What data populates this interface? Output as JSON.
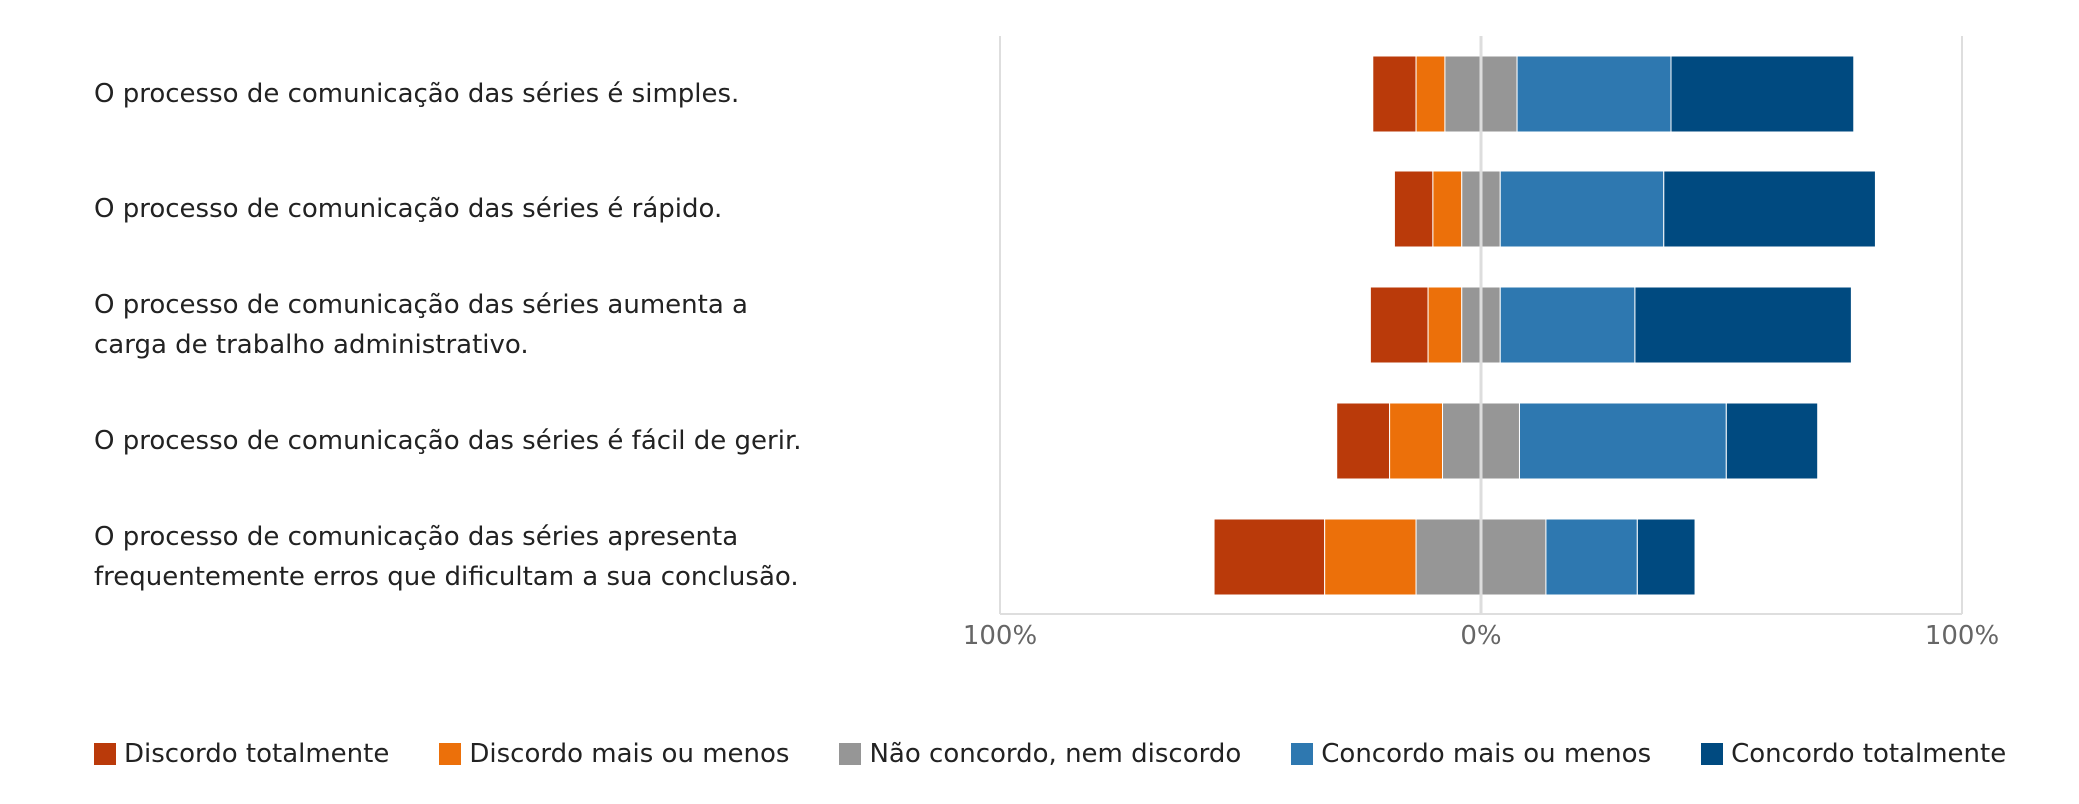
{
  "chart_data": {
    "type": "bar",
    "orientation": "horizontal",
    "stacked": "diverging",
    "categories": [
      "O processo de comunicação das séries é simples.",
      "O processo de comunicação das séries é rápido.",
      "O processo de comunicação das séries aumenta a\ncarga de trabalho administrativo.",
      "O processo de comunicação das séries é fácil de gerir.",
      "O processo de comunicação das séries apresenta\nfrequentemente erros que dificultam a sua conclusão."
    ],
    "series": [
      {
        "name": "Discordo totalmente",
        "color": "#BA3A0A",
        "values": [
          9,
          8,
          12,
          11,
          23
        ]
      },
      {
        "name": "Discordo mais ou menos",
        "color": "#EC700A",
        "values": [
          6,
          6,
          7,
          11,
          19
        ]
      },
      {
        "name": "Não concordo, nem discordo",
        "color": "#969696",
        "values": [
          15,
          8,
          8,
          16,
          27
        ]
      },
      {
        "name": "Concordo mais ou menos",
        "color": "#2E78B0",
        "values": [
          32,
          34,
          28,
          43,
          19
        ]
      },
      {
        "name": "Concordo totalmente",
        "color": "#004A80",
        "values": [
          38,
          44,
          45,
          19,
          12
        ]
      }
    ],
    "neutral_series_index": 2,
    "x_ticks": [
      "100%",
      "0%",
      "100%"
    ],
    "xlim": [
      -100,
      100
    ],
    "grid": true,
    "legend_position": "bottom"
  }
}
